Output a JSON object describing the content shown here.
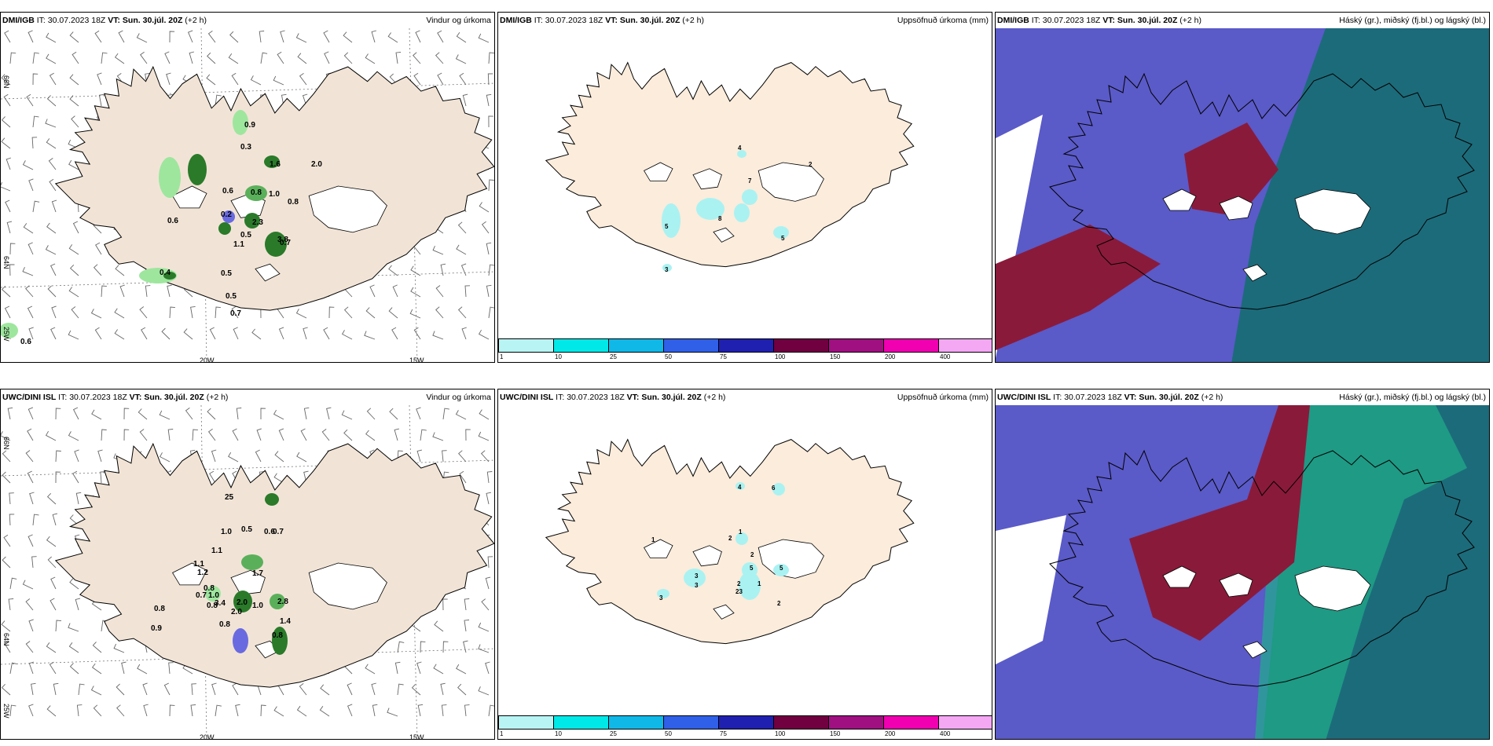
{
  "panels": {
    "p1": {
      "model": "DMI/IGB",
      "it_label": "IT:",
      "it": "30.07.2023 18Z",
      "vt_label": "VT: Sun. 30.júl. 20Z",
      "lead": "(+2 h)",
      "title": "Vindur og úrkoma"
    },
    "p2": {
      "model": "DMI/IGB",
      "it_label": "IT:",
      "it": "30.07.2023 18Z",
      "vt_label": "VT: Sun. 30.júl. 20Z",
      "lead": "(+2 h)",
      "title": "Uppsöfnuð úrkoma (mm)"
    },
    "p3": {
      "model": "DMI/IGB",
      "it_label": "IT:",
      "it": "30.07.2023 18Z",
      "vt_label": "VT: Sun. 30.júl. 20Z",
      "lead": "(+2 h)",
      "title": "Háský (gr.), miðský (fj.bl.) og lágský (bl.)"
    },
    "p4": {
      "model": "UWC/DINI ISL",
      "it_label": "IT:",
      "it": "30.07.2023 18Z",
      "vt_label": "VT: Sun. 30.júl. 20Z",
      "lead": "(+2 h)",
      "title": "Vindur og úrkoma"
    },
    "p5": {
      "model": "UWC/DINI ISL",
      "it_label": "IT:",
      "it": "30.07.2023 18Z",
      "vt_label": "VT: Sun. 30.júl. 20Z",
      "lead": "(+2 h)",
      "title": "Uppsöfnuð úrkoma (mm)"
    },
    "p6": {
      "model": "UWC/DINI ISL",
      "it_label": "IT:",
      "it": "30.07.2023 18Z",
      "vt_label": "VT: Sun. 30.júl. 20Z",
      "lead": "(+2 h)",
      "title": "Háský (gr.), miðský (fj.bl.) og lágský (bl.)"
    }
  },
  "axis": {
    "lat_66": "66N",
    "lat_64": "64N",
    "lon_25": "25W",
    "lon_20": "20W",
    "lon_15": "15W"
  },
  "precip_dmi": [
    "0.9",
    "0.3",
    "1.6",
    "2.0",
    "0.6",
    "0.8",
    "1.0",
    "0.8",
    "0.2",
    "2.3",
    "0.6",
    "0.5",
    "0.7",
    "1.1",
    "3.8",
    "0.4",
    "0.5",
    "0.5",
    "0.7",
    "0.6"
  ],
  "precip_uwc": [
    "25",
    "1.0",
    "0.5",
    "0.6",
    "0.7",
    "1.1",
    "1.1",
    "1.2",
    "0.8",
    "0.7",
    "1.0",
    "0.8",
    "3.4",
    "2.0",
    "1.0",
    "2.0",
    "0.8",
    "1.4",
    "2.8",
    "1.7",
    "0.8",
    "0.9",
    "0.8"
  ],
  "accum_dmi": [
    "4",
    "2",
    "7",
    "5",
    "8",
    "5",
    "3"
  ],
  "accum_uwc": [
    "4",
    "6",
    "1",
    "2",
    "1",
    "2",
    "5",
    "3",
    "3",
    "2",
    "23",
    "1",
    "5",
    "2",
    "3"
  ],
  "colorbar": {
    "ticks": [
      "1",
      "10",
      "25",
      "50",
      "75",
      "100",
      "150",
      "200",
      "400"
    ],
    "colors": [
      "#b8f4f4",
      "#00e8e8",
      "#10b8e8",
      "#3060e8",
      "#2020b0",
      "#700040",
      "#a01080",
      "#f000b0",
      "#f4a8f4"
    ]
  }
}
